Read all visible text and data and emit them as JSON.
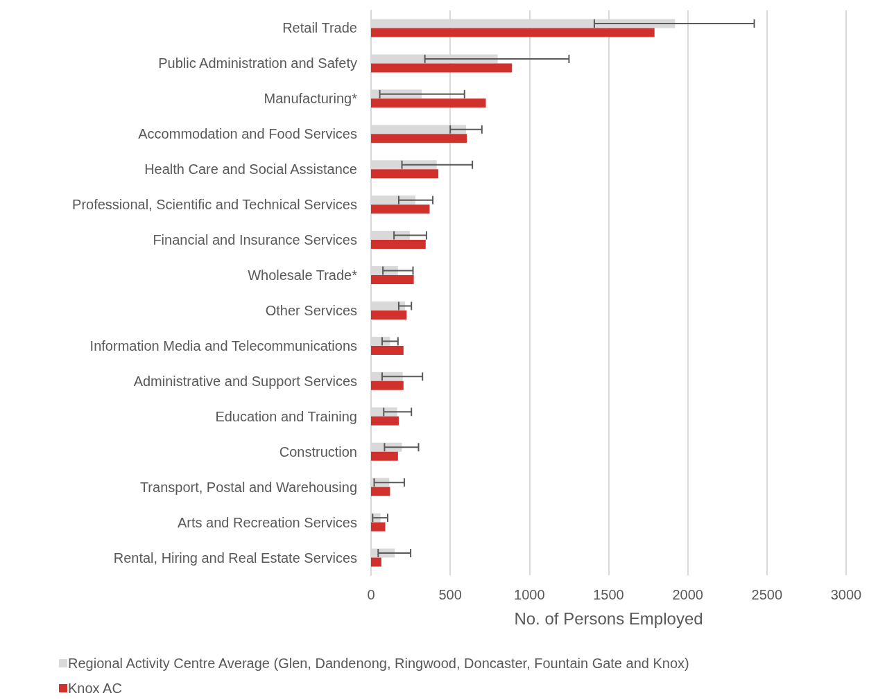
{
  "chart_data": {
    "type": "bar",
    "orientation": "horizontal",
    "xlabel": "No. of Persons Employed",
    "categories": [
      "Retail Trade",
      "Public Administration and Safety",
      "Manufacturing*",
      "Accommodation and Food Services",
      "Health Care and Social Assistance",
      "Professional, Scientific and Technical Services",
      "Financial and Insurance Services",
      "Wholesale Trade*",
      "Other Services",
      "Information Media and Telecommunications",
      "Administrative and Support Services",
      "Education and Training",
      "Construction",
      "Transport, Postal and Warehousing",
      "Arts and Recreation Services",
      "Rental, Hiring and Real Estate Services"
    ],
    "series": [
      {
        "name": "Regional Activity Centre Average (Glen, Dandenong, Ringwood, Doncaster, Fountain Gate and Knox)",
        "color": "#d9d9d9",
        "values": [
          1920,
          800,
          320,
          600,
          415,
          280,
          245,
          170,
          215,
          120,
          200,
          165,
          195,
          115,
          60,
          150
        ],
        "errors": [
          [
            1410,
            2420
          ],
          [
            340,
            1250
          ],
          [
            55,
            590
          ],
          [
            500,
            700
          ],
          [
            195,
            640
          ],
          [
            175,
            390
          ],
          [
            145,
            350
          ],
          [
            75,
            265
          ],
          [
            175,
            255
          ],
          [
            70,
            170
          ],
          [
            70,
            325
          ],
          [
            80,
            255
          ],
          [
            85,
            300
          ],
          [
            20,
            210
          ],
          [
            10,
            105
          ],
          [
            45,
            250
          ]
        ]
      },
      {
        "name": "Knox AC",
        "color": "#d0312d",
        "values": [
          1790,
          890,
          725,
          605,
          425,
          370,
          345,
          270,
          225,
          205,
          205,
          175,
          170,
          120,
          90,
          65
        ]
      }
    ],
    "xlim": [
      0,
      3000
    ],
    "xticks": [
      0,
      500,
      1000,
      1500,
      2000,
      2500,
      3000
    ],
    "grid": "x",
    "legend": "bottom"
  }
}
